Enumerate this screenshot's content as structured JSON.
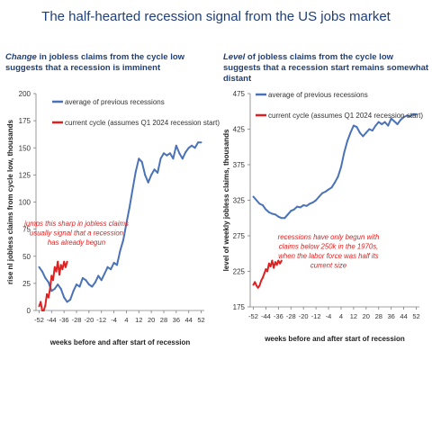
{
  "title": "The half-hearted recession signal from the US jobs market",
  "left_panel": {
    "subtitle_emph": "Change",
    "subtitle_rest": " in jobless claims from the cycle low suggests that a recession is imminent"
  },
  "right_panel": {
    "subtitle_emph": "Level",
    "subtitle_rest": " of jobless claims from the cycle low suggests that a recession start remains somewhat distant"
  },
  "chart_data": [
    {
      "type": "line",
      "title": "",
      "xlabel": "weeks before and after start of recession",
      "ylabel": "rise nl jobless claims from cycle low, thousands",
      "xlim": [
        -54,
        54
      ],
      "ylim": [
        0,
        200
      ],
      "x_ticks": [
        "-52",
        "-44",
        "-36",
        "-28",
        "-20",
        "-12",
        "-4",
        "4",
        "12",
        "20",
        "28",
        "36",
        "44",
        "52"
      ],
      "y_ticks": [
        "0",
        "25",
        "50",
        "75",
        "100",
        "125",
        "150",
        "175",
        "200"
      ],
      "legend": "top",
      "annotation": "jumps this sharp in jobless claims usually signal that a recession has already begun",
      "series": [
        {
          "name": "average of previous recessions",
          "color": "#4a72b8",
          "x": [
            -52,
            -50,
            -48,
            -46,
            -44,
            -42,
            -40,
            -38,
            -36,
            -34,
            -32,
            -30,
            -28,
            -26,
            -24,
            -22,
            -20,
            -18,
            -16,
            -14,
            -12,
            -10,
            -8,
            -6,
            -4,
            -2,
            0,
            2,
            4,
            6,
            8,
            10,
            12,
            14,
            16,
            18,
            20,
            22,
            24,
            26,
            28,
            30,
            32,
            34,
            36,
            38,
            40,
            42,
            44,
            46,
            48,
            50,
            52
          ],
          "values": [
            40,
            36,
            30,
            26,
            18,
            20,
            24,
            20,
            12,
            8,
            10,
            18,
            24,
            22,
            30,
            28,
            24,
            22,
            26,
            32,
            28,
            34,
            40,
            38,
            44,
            42,
            55,
            65,
            80,
            95,
            112,
            128,
            140,
            137,
            125,
            118,
            125,
            130,
            127,
            140,
            145,
            143,
            145,
            140,
            152,
            145,
            140,
            146,
            150,
            152,
            150,
            155,
            155
          ]
        },
        {
          "name": "current cycle (assumes Q1 2024 recession start)",
          "color": "#e02020",
          "x": [
            -52,
            -51,
            -50,
            -49,
            -48,
            -47,
            -46,
            -45,
            -44,
            -43,
            -42,
            -41,
            -40,
            -39,
            -38,
            -37,
            -36,
            -35,
            -34
          ],
          "values": [
            4,
            8,
            0,
            0,
            5,
            15,
            12,
            20,
            32,
            28,
            40,
            36,
            45,
            33,
            42,
            38,
            45,
            40,
            45
          ]
        }
      ]
    },
    {
      "type": "line",
      "title": "",
      "xlabel": "weeks before and after start of recession",
      "ylabel": "level of weekly jobless claims, thousands",
      "xlim": [
        -54,
        54
      ],
      "ylim": [
        175,
        475
      ],
      "x_ticks": [
        "-52",
        "-44",
        "-36",
        "-28",
        "-20",
        "-12",
        "-4",
        "4",
        "12",
        "20",
        "28",
        "36",
        "44",
        "52"
      ],
      "y_ticks": [
        "175",
        "225",
        "275",
        "325",
        "375",
        "425",
        "475"
      ],
      "legend": "top",
      "annotation": "recessions have only begun with claims below 250k in the 1970s, when the labor force was half its current size",
      "series": [
        {
          "name": "average of previous recessions",
          "color": "#4a72b8",
          "x": [
            -52,
            -50,
            -48,
            -46,
            -44,
            -42,
            -40,
            -38,
            -36,
            -34,
            -32,
            -30,
            -28,
            -26,
            -24,
            -22,
            -20,
            -18,
            -16,
            -14,
            -12,
            -10,
            -8,
            -6,
            -4,
            -2,
            0,
            2,
            4,
            6,
            8,
            10,
            12,
            14,
            16,
            18,
            20,
            22,
            24,
            26,
            28,
            30,
            32,
            34,
            36,
            38,
            40,
            42,
            44,
            46,
            48,
            50,
            52
          ],
          "values": [
            330,
            325,
            320,
            318,
            312,
            308,
            306,
            305,
            302,
            300,
            300,
            305,
            310,
            312,
            316,
            315,
            318,
            317,
            320,
            322,
            325,
            330,
            335,
            337,
            340,
            343,
            350,
            358,
            372,
            392,
            408,
            420,
            430,
            428,
            420,
            415,
            420,
            425,
            423,
            430,
            435,
            432,
            435,
            430,
            440,
            436,
            432,
            438,
            442,
            444,
            443,
            446,
            446
          ]
        },
        {
          "name": "current cycle (assumes Q1 2024 recession start)",
          "color": "#e02020",
          "x": [
            -52,
            -51,
            -50,
            -49,
            -48,
            -47,
            -46,
            -45,
            -44,
            -43,
            -42,
            -41,
            -40,
            -39,
            -38,
            -37,
            -36,
            -35,
            -34
          ],
          "values": [
            206,
            210,
            205,
            202,
            205,
            212,
            216,
            222,
            228,
            225,
            236,
            232,
            240,
            230,
            238,
            234,
            240,
            236,
            240
          ]
        }
      ]
    }
  ]
}
